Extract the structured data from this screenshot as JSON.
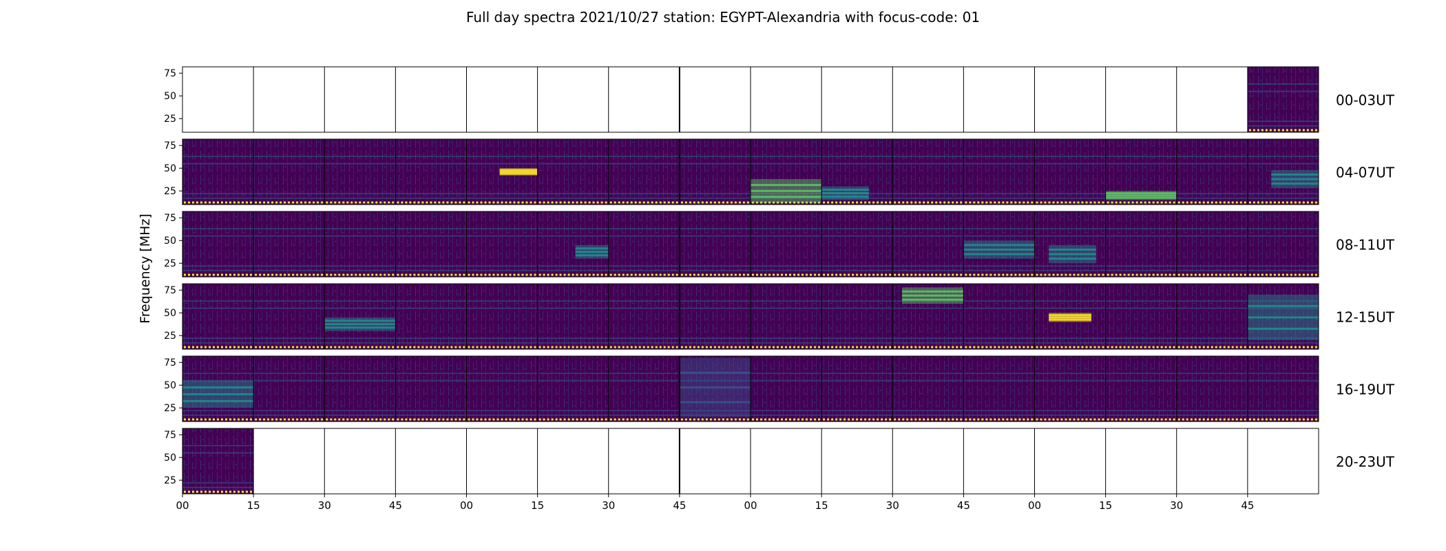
{
  "chart_data": {
    "type": "heatmap",
    "title": "Full day spectra 2021/10/27 station: EGYPT-Alexandria with focus-code: 01",
    "ylabel": "Frequency [MHz]",
    "xlabel": "",
    "y_ticks": [
      25,
      50,
      75
    ],
    "ylim": [
      10,
      82
    ],
    "x_tick_labels": [
      "00",
      "15",
      "30",
      "45",
      "00",
      "15",
      "30",
      "45",
      "00",
      "15",
      "30",
      "45",
      "00",
      "15",
      "30",
      "45"
    ],
    "panels_per_row": 16,
    "panel_minutes": 15,
    "colormap": "viridis",
    "colors": {
      "background": "#440154",
      "mid": "#3b528b",
      "teal": "#21908d",
      "green": "#5dc962",
      "yellow": "#fde725"
    },
    "rows": [
      {
        "label": "00-03UT",
        "filled": [
          15
        ]
      },
      {
        "label": "04-07UT",
        "filled": [
          0,
          1,
          2,
          3,
          4,
          5,
          6,
          7,
          8,
          9,
          10,
          11,
          12,
          13,
          14,
          15
        ]
      },
      {
        "label": "08-11UT",
        "filled": [
          0,
          1,
          2,
          3,
          4,
          5,
          6,
          7,
          8,
          9,
          10,
          11,
          12,
          13,
          14,
          15
        ]
      },
      {
        "label": "12-15UT",
        "filled": [
          0,
          1,
          2,
          3,
          4,
          5,
          6,
          7,
          8,
          9,
          10,
          11,
          12,
          13,
          14,
          15
        ]
      },
      {
        "label": "16-19UT",
        "filled": [
          0,
          1,
          2,
          3,
          4,
          5,
          6,
          7,
          8,
          9,
          10,
          11,
          12,
          13,
          14,
          15
        ]
      },
      {
        "label": "20-23UT",
        "filled": [
          0
        ]
      }
    ],
    "bursts": [
      {
        "row": 1,
        "panel": 4,
        "min": [
          7,
          15
        ],
        "freq": [
          42,
          50
        ],
        "level": "yellow"
      },
      {
        "row": 1,
        "panel": 8,
        "min": [
          0,
          15
        ],
        "freq": [
          12,
          38
        ],
        "level": "green"
      },
      {
        "row": 1,
        "panel": 9,
        "min": [
          0,
          10
        ],
        "freq": [
          15,
          30
        ],
        "level": "teal"
      },
      {
        "row": 1,
        "panel": 13,
        "min": [
          0,
          15
        ],
        "freq": [
          15,
          25
        ],
        "level": "green"
      },
      {
        "row": 1,
        "panel": 15,
        "min": [
          5,
          15
        ],
        "freq": [
          28,
          48
        ],
        "level": "teal"
      },
      {
        "row": 2,
        "panel": 5,
        "min": [
          8,
          15
        ],
        "freq": [
          30,
          45
        ],
        "level": "teal"
      },
      {
        "row": 2,
        "panel": 11,
        "min": [
          0,
          15
        ],
        "freq": [
          30,
          50
        ],
        "level": "teal"
      },
      {
        "row": 2,
        "panel": 12,
        "min": [
          3,
          13
        ],
        "freq": [
          25,
          45
        ],
        "level": "teal"
      },
      {
        "row": 3,
        "panel": 2,
        "min": [
          0,
          15
        ],
        "freq": [
          30,
          45
        ],
        "level": "teal"
      },
      {
        "row": 3,
        "panel": 10,
        "min": [
          2,
          15
        ],
        "freq": [
          60,
          78
        ],
        "level": "green"
      },
      {
        "row": 3,
        "panel": 12,
        "min": [
          3,
          12
        ],
        "freq": [
          40,
          50
        ],
        "level": "yellow"
      },
      {
        "row": 3,
        "panel": 15,
        "min": [
          0,
          15
        ],
        "freq": [
          20,
          70
        ],
        "level": "teal"
      },
      {
        "row": 4,
        "panel": 0,
        "min": [
          0,
          15
        ],
        "freq": [
          25,
          55
        ],
        "level": "teal"
      },
      {
        "row": 4,
        "panel": 7,
        "min": [
          0,
          15
        ],
        "freq": [
          15,
          80
        ],
        "level": "mid"
      }
    ]
  }
}
